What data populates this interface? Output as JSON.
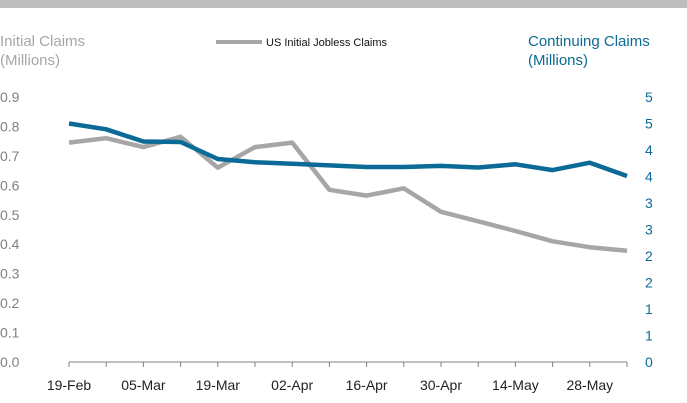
{
  "chart_data": {
    "type": "line",
    "title": "",
    "xlabel": "",
    "ylabel_left_line1": "Initial Claims",
    "ylabel_left_line2": "(Millions)",
    "ylabel_right_line1": "Continuing Claims",
    "ylabel_right_line2": "(Millions)",
    "x_tick_labels": [
      "19-Feb",
      "05-Mar",
      "19-Mar",
      "02-Apr",
      "16-Apr",
      "30-Apr",
      "14-May",
      "28-May"
    ],
    "y_left_ticks": [
      "0.0",
      "0.1",
      "0.2",
      "0.3",
      "0.4",
      "0.5",
      "0.6",
      "0.7",
      "0.8",
      "0.9"
    ],
    "y_right_ticks": [
      "0",
      "1",
      "1",
      "2",
      "2",
      "3",
      "3",
      "4",
      "4",
      "5",
      "5"
    ],
    "ylim_left": [
      0,
      0.9
    ],
    "ylim_right": [
      0,
      5
    ],
    "legend_position": "top-center",
    "grid": false,
    "x": [
      "19-Feb",
      "26-Feb",
      "05-Mar",
      "12-Mar",
      "19-Mar",
      "26-Mar",
      "02-Apr",
      "09-Apr",
      "16-Apr",
      "23-Apr",
      "30-Apr",
      "07-May",
      "14-May",
      "21-May",
      "28-May",
      "04-Jun"
    ],
    "series": [
      {
        "name": "US Initial Jobless Claims",
        "axis": "left",
        "color": "#a6a6a6",
        "values": [
          0.745,
          0.76,
          0.73,
          0.765,
          0.66,
          0.73,
          0.745,
          0.585,
          0.565,
          0.59,
          0.51,
          0.478,
          0.445,
          0.41,
          0.39,
          0.378
        ]
      },
      {
        "axis": "right",
        "color": "#0b6a96",
        "values": [
          4.5,
          4.39,
          4.16,
          4.15,
          3.83,
          3.77,
          3.74,
          3.71,
          3.68,
          3.68,
          3.7,
          3.67,
          3.73,
          3.62,
          3.76,
          3.51
        ]
      }
    ]
  }
}
